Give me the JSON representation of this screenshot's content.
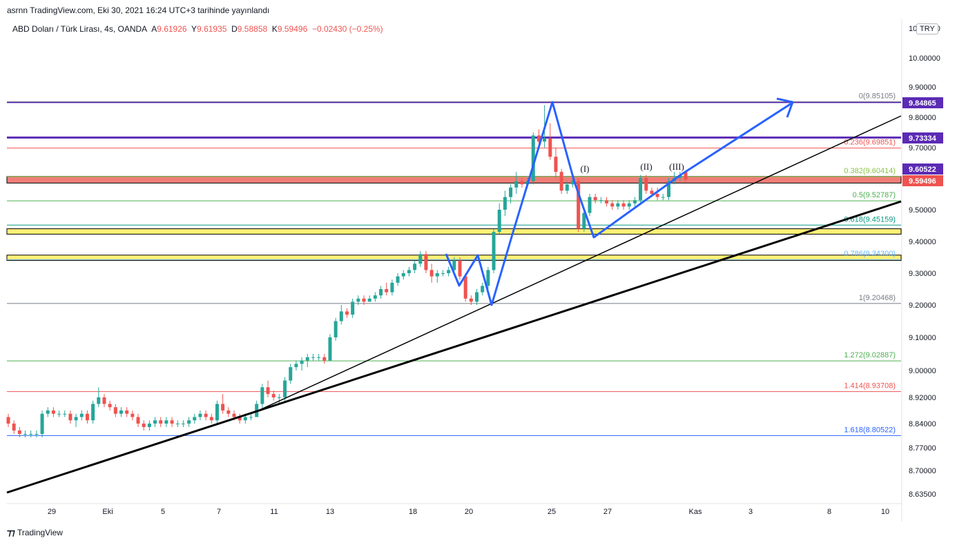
{
  "header": {
    "publish_text": "asrnn TradingView.com, Eki 30, 2021 16:24 UTC+3 tarihinde yayınlandı"
  },
  "legend": {
    "symbol": "ABD Doları / Türk Lirası, 4s, OANDA",
    "open_label": "A",
    "open": "9.61926",
    "high_label": "Y",
    "high": "9.61935",
    "low_label": "D",
    "low": "9.58858",
    "close_label": "K",
    "close": "9.59496",
    "change": "−0.02430 (−0.25%)"
  },
  "currency_badge": "TRY",
  "footer": {
    "logo_icon": "tradingview-logo-icon",
    "brand": "TradingView"
  },
  "colors": {
    "up": "#26a69a",
    "down": "#ef5350",
    "pattern": "#2962ff",
    "purple": "#5b2bb5",
    "red_zone": "#f07d78",
    "yellow_zone": "#fff176"
  },
  "chart_data": {
    "type": "candlestick",
    "title": "ABD Doları / Türk Lirası, 4s, OANDA",
    "ylim": [
      8.6,
      10.1
    ],
    "y_axis_ticks": [
      "10.00000",
      "9.90000",
      "9.80000",
      "9.70000",
      "9.60000",
      "9.50000",
      "9.40000",
      "9.30000",
      "9.20000",
      "9.10000",
      "9.00000",
      "8.92000",
      "8.84000",
      "8.77000",
      "8.70000",
      "8.63500"
    ],
    "y_axis_top_label": "10.10000",
    "x_axis_ticks": [
      "29",
      "Eki",
      "5",
      "7",
      "11",
      "13",
      "18",
      "20",
      "25",
      "27",
      "Kas",
      "3",
      "8",
      "10"
    ],
    "price_badges": [
      {
        "label": "9.84865",
        "value": 9.84865,
        "color": "#5b2bb5"
      },
      {
        "label": "9.73334",
        "value": 9.73334,
        "color": "#5b2bb5"
      },
      {
        "label": "9.60522",
        "value": 9.60522,
        "color": "#5b2bb5"
      },
      {
        "label": "9.59496",
        "value": 9.59496,
        "color": "#ef5350"
      }
    ],
    "horizontal_lines": [
      {
        "value": 9.84865,
        "color": "#5b2bb5",
        "width": 1.5
      },
      {
        "value": 9.73334,
        "color": "#5b2bb5",
        "width": 3
      }
    ],
    "zones": [
      {
        "from": 9.584,
        "to": 9.605,
        "color": "#f07d78"
      },
      {
        "from": 9.423,
        "to": 9.44,
        "color": "#fff176"
      },
      {
        "from": 9.34,
        "to": 9.357,
        "color": "#fff176"
      }
    ],
    "fibonacci": [
      {
        "label": "0(9.85105)",
        "value": 9.85105,
        "color": "#787b86"
      },
      {
        "label": "0.236(9.69851)",
        "value": 9.69851,
        "color": "#ef5350"
      },
      {
        "label": "0.382(9.60414)",
        "value": 9.60414,
        "color": "#8bc34a"
      },
      {
        "label": "0.5(9.52787)",
        "value": 9.52787,
        "color": "#4caf50"
      },
      {
        "label": "0.618(9.45159)",
        "value": 9.45159,
        "color": "#089981"
      },
      {
        "label": "0.786(9.34300)",
        "value": 9.343,
        "color": "#64b5f6"
      },
      {
        "label": "1(9.20468)",
        "value": 9.20468,
        "color": "#787b86"
      },
      {
        "label": "1.272(9.02887)",
        "value": 9.02887,
        "color": "#4caf50"
      },
      {
        "label": "1.414(8.93708)",
        "value": 8.93708,
        "color": "#ef5350"
      },
      {
        "label": "1.618(8.80522)",
        "value": 8.80522,
        "color": "#2962ff"
      }
    ],
    "wave_labels": [
      "(I)",
      "(II)",
      "(III)"
    ],
    "candles_ohlc": [
      [
        8.86,
        8.87,
        8.83,
        8.84
      ],
      [
        8.84,
        8.85,
        8.81,
        8.82
      ],
      [
        8.82,
        8.83,
        8.8,
        8.81
      ],
      [
        8.81,
        8.82,
        8.8,
        8.81
      ],
      [
        8.81,
        8.82,
        8.8,
        8.81
      ],
      [
        8.81,
        8.82,
        8.8,
        8.81
      ],
      [
        8.81,
        8.88,
        8.8,
        8.87
      ],
      [
        8.87,
        8.89,
        8.86,
        8.88
      ],
      [
        8.88,
        8.89,
        8.86,
        8.87
      ],
      [
        8.87,
        8.88,
        8.86,
        8.87
      ],
      [
        8.87,
        8.88,
        8.86,
        8.87
      ],
      [
        8.87,
        8.88,
        8.84,
        8.85
      ],
      [
        8.85,
        8.87,
        8.83,
        8.86
      ],
      [
        8.86,
        8.88,
        8.85,
        8.87
      ],
      [
        8.87,
        8.88,
        8.84,
        8.85
      ],
      [
        8.85,
        8.91,
        8.84,
        8.9
      ],
      [
        8.9,
        8.95,
        8.89,
        8.92
      ],
      [
        8.92,
        8.93,
        8.89,
        8.9
      ],
      [
        8.9,
        8.91,
        8.88,
        8.89
      ],
      [
        8.89,
        8.9,
        8.86,
        8.87
      ],
      [
        8.87,
        8.89,
        8.86,
        8.88
      ],
      [
        8.88,
        8.89,
        8.86,
        8.87
      ],
      [
        8.87,
        8.88,
        8.85,
        8.86
      ],
      [
        8.86,
        8.87,
        8.83,
        8.84
      ],
      [
        8.84,
        8.85,
        8.82,
        8.83
      ],
      [
        8.83,
        8.85,
        8.82,
        8.84
      ],
      [
        8.84,
        8.86,
        8.83,
        8.85
      ],
      [
        8.85,
        8.86,
        8.83,
        8.84
      ],
      [
        8.84,
        8.86,
        8.83,
        8.85
      ],
      [
        8.85,
        8.86,
        8.83,
        8.84
      ],
      [
        8.84,
        8.85,
        8.83,
        8.84
      ],
      [
        8.84,
        8.85,
        8.83,
        8.84
      ],
      [
        8.84,
        8.86,
        8.83,
        8.85
      ],
      [
        8.85,
        8.87,
        8.84,
        8.86
      ],
      [
        8.86,
        8.88,
        8.85,
        8.87
      ],
      [
        8.87,
        8.88,
        8.85,
        8.86
      ],
      [
        8.86,
        8.87,
        8.84,
        8.85
      ],
      [
        8.85,
        8.91,
        8.84,
        8.9
      ],
      [
        8.9,
        8.93,
        8.87,
        8.88
      ],
      [
        8.88,
        8.89,
        8.86,
        8.87
      ],
      [
        8.87,
        8.88,
        8.85,
        8.86
      ],
      [
        8.86,
        8.87,
        8.84,
        8.85
      ],
      [
        8.85,
        8.87,
        8.84,
        8.86
      ],
      [
        8.86,
        8.87,
        8.85,
        8.86
      ],
      [
        8.86,
        8.91,
        8.86,
        8.9
      ],
      [
        8.9,
        8.96,
        8.88,
        8.95
      ],
      [
        8.95,
        8.97,
        8.92,
        8.93
      ],
      [
        8.93,
        8.94,
        8.91,
        8.92
      ],
      [
        8.92,
        8.93,
        8.9,
        8.92
      ],
      [
        8.92,
        8.98,
        8.91,
        8.97
      ],
      [
        8.97,
        9.02,
        8.96,
        9.01
      ],
      [
        9.01,
        9.03,
        9.0,
        9.02
      ],
      [
        9.02,
        9.04,
        9.0,
        9.03
      ],
      [
        9.03,
        9.05,
        9.01,
        9.04
      ],
      [
        9.04,
        9.05,
        9.03,
        9.04
      ],
      [
        9.04,
        9.05,
        9.03,
        9.04
      ],
      [
        9.04,
        9.05,
        9.02,
        9.03
      ],
      [
        9.03,
        9.11,
        9.03,
        9.1
      ],
      [
        9.1,
        9.16,
        9.09,
        9.15
      ],
      [
        9.15,
        9.2,
        9.14,
        9.18
      ],
      [
        9.18,
        9.19,
        9.16,
        9.17
      ],
      [
        9.17,
        9.22,
        9.16,
        9.21
      ],
      [
        9.21,
        9.23,
        9.2,
        9.22
      ],
      [
        9.22,
        9.23,
        9.2,
        9.21
      ],
      [
        9.21,
        9.23,
        9.21,
        9.22
      ],
      [
        9.22,
        9.24,
        9.21,
        9.23
      ],
      [
        9.23,
        9.26,
        9.22,
        9.25
      ],
      [
        9.25,
        9.27,
        9.23,
        9.24
      ],
      [
        9.24,
        9.28,
        9.23,
        9.27
      ],
      [
        9.27,
        9.3,
        9.26,
        9.29
      ],
      [
        9.29,
        9.31,
        9.28,
        9.3
      ],
      [
        9.3,
        9.32,
        9.29,
        9.31
      ],
      [
        9.31,
        9.34,
        9.3,
        9.33
      ],
      [
        9.33,
        9.37,
        9.32,
        9.36
      ],
      [
        9.36,
        9.37,
        9.3,
        9.31
      ],
      [
        9.31,
        9.33,
        9.27,
        9.29
      ],
      [
        9.29,
        9.31,
        9.27,
        9.3
      ],
      [
        9.3,
        9.31,
        9.29,
        9.3
      ],
      [
        9.3,
        9.32,
        9.29,
        9.31
      ],
      [
        9.31,
        9.35,
        9.3,
        9.34
      ],
      [
        9.34,
        9.35,
        9.28,
        9.29
      ],
      [
        9.29,
        9.3,
        9.21,
        9.22
      ],
      [
        9.22,
        9.23,
        9.2,
        9.21
      ],
      [
        9.21,
        9.25,
        9.2,
        9.24
      ],
      [
        9.24,
        9.27,
        9.23,
        9.26
      ],
      [
        9.26,
        9.32,
        9.25,
        9.31
      ],
      [
        9.31,
        9.44,
        9.3,
        9.43
      ],
      [
        9.43,
        9.52,
        9.42,
        9.5
      ],
      [
        9.5,
        9.56,
        9.48,
        9.54
      ],
      [
        9.54,
        9.58,
        9.52,
        9.57
      ],
      [
        9.57,
        9.62,
        9.55,
        9.59
      ],
      [
        9.59,
        9.6,
        9.57,
        9.58
      ],
      [
        9.58,
        9.6,
        9.57,
        9.59
      ],
      [
        9.59,
        9.75,
        9.58,
        9.74
      ],
      [
        9.74,
        9.76,
        9.71,
        9.72
      ],
      [
        9.72,
        9.84,
        9.7,
        9.73
      ],
      [
        9.73,
        9.78,
        9.66,
        9.67
      ],
      [
        9.67,
        9.7,
        9.6,
        9.62
      ],
      [
        9.62,
        9.63,
        9.55,
        9.56
      ],
      [
        9.56,
        9.59,
        9.55,
        9.58
      ],
      [
        9.58,
        9.6,
        9.57,
        9.59
      ],
      [
        9.59,
        9.6,
        9.43,
        9.44
      ],
      [
        9.44,
        9.5,
        9.43,
        9.49
      ],
      [
        9.49,
        9.55,
        9.48,
        9.54
      ],
      [
        9.54,
        9.55,
        9.52,
        9.53
      ],
      [
        9.53,
        9.54,
        9.52,
        9.53
      ],
      [
        9.53,
        9.54,
        9.51,
        9.52
      ],
      [
        9.52,
        9.53,
        9.5,
        9.51
      ],
      [
        9.51,
        9.53,
        9.5,
        9.52
      ],
      [
        9.52,
        9.53,
        9.5,
        9.51
      ],
      [
        9.51,
        9.53,
        9.5,
        9.52
      ],
      [
        9.52,
        9.54,
        9.51,
        9.53
      ],
      [
        9.53,
        9.61,
        9.52,
        9.6
      ],
      [
        9.6,
        9.61,
        9.55,
        9.56
      ],
      [
        9.56,
        9.57,
        9.54,
        9.55
      ],
      [
        9.55,
        9.57,
        9.53,
        9.54
      ],
      [
        9.54,
        9.55,
        9.53,
        9.54
      ],
      [
        9.54,
        9.6,
        9.53,
        9.59
      ],
      [
        9.59,
        9.62,
        9.58,
        9.6
      ],
      [
        9.6,
        9.62,
        9.59,
        9.61
      ],
      [
        9.61926,
        9.61935,
        9.58858,
        9.59496
      ]
    ]
  }
}
